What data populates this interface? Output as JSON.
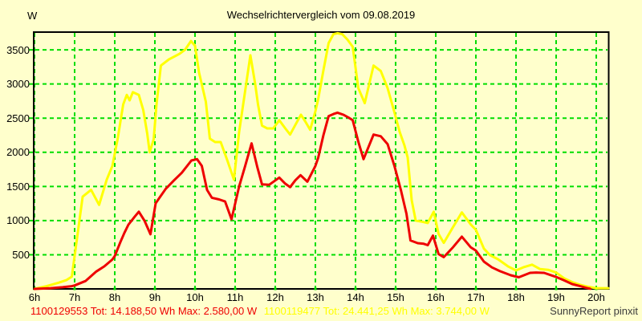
{
  "title": "Wechselrichtervergleich vom 09.08.2019",
  "y_unit": "W",
  "footer": {
    "series_red": "1100129553 Tot: 14.188,50 Wh Max: 2.580,00 W",
    "series_yellow": "1100119477 Tot: 24.441,25 Wh Max: 3.744,00 W",
    "credit": "SunnyReport pinxit"
  },
  "colors": {
    "background": "#ffffcc",
    "grid": "#00dd00",
    "axis": "#000000",
    "text": "#000000",
    "series_red": "#ee0000",
    "series_yellow": "#ffff00"
  },
  "chart_data": {
    "type": "line",
    "title": "Wechselrichtervergleich vom 09.08.2019",
    "xlabel": "",
    "ylabel": "W",
    "x_ticks": [
      "6h",
      "7h",
      "8h",
      "9h",
      "10h",
      "11h",
      "12h",
      "13h",
      "14h",
      "15h",
      "16h",
      "17h",
      "18h",
      "19h",
      "20h"
    ],
    "y_ticks": [
      500,
      1000,
      1500,
      2000,
      2500,
      3000,
      3500
    ],
    "xlim": [
      6,
      20.3
    ],
    "ylim": [
      0,
      3760
    ],
    "grid": true,
    "grid_style": "dashed",
    "legend_position": "bottom",
    "series": [
      {
        "name": "1100129553",
        "color": "#ee0000",
        "total_wh": "14.188,50",
        "max_w": "2.580,00",
        "points": [
          [
            6.0,
            0
          ],
          [
            6.4,
            10
          ],
          [
            6.7,
            25
          ],
          [
            6.93,
            40
          ],
          [
            7.0,
            50
          ],
          [
            7.27,
            115
          ],
          [
            7.54,
            255
          ],
          [
            7.74,
            330
          ],
          [
            7.94,
            430
          ],
          [
            8.0,
            480
          ],
          [
            8.14,
            685
          ],
          [
            8.24,
            820
          ],
          [
            8.34,
            940
          ],
          [
            8.5,
            1060
          ],
          [
            8.6,
            1130
          ],
          [
            8.74,
            1000
          ],
          [
            8.89,
            800
          ],
          [
            9.02,
            1255
          ],
          [
            9.11,
            1330
          ],
          [
            9.27,
            1465
          ],
          [
            9.47,
            1585
          ],
          [
            9.67,
            1700
          ],
          [
            9.91,
            1880
          ],
          [
            10.05,
            1900
          ],
          [
            10.17,
            1800
          ],
          [
            10.3,
            1450
          ],
          [
            10.42,
            1335
          ],
          [
            10.6,
            1310
          ],
          [
            10.75,
            1280
          ],
          [
            10.91,
            1020
          ],
          [
            11.1,
            1500
          ],
          [
            11.25,
            1800
          ],
          [
            11.41,
            2130
          ],
          [
            11.55,
            1790
          ],
          [
            11.67,
            1530
          ],
          [
            11.85,
            1525
          ],
          [
            12.1,
            1630
          ],
          [
            12.25,
            1540
          ],
          [
            12.37,
            1490
          ],
          [
            12.5,
            1590
          ],
          [
            12.63,
            1665
          ],
          [
            12.8,
            1570
          ],
          [
            13.0,
            1800
          ],
          [
            13.07,
            1920
          ],
          [
            13.2,
            2250
          ],
          [
            13.33,
            2530
          ],
          [
            13.45,
            2560
          ],
          [
            13.55,
            2580
          ],
          [
            13.7,
            2550
          ],
          [
            13.85,
            2500
          ],
          [
            13.93,
            2470
          ],
          [
            14.07,
            2155
          ],
          [
            14.2,
            1900
          ],
          [
            14.45,
            2260
          ],
          [
            14.63,
            2235
          ],
          [
            14.8,
            2120
          ],
          [
            14.97,
            1800
          ],
          [
            15.13,
            1450
          ],
          [
            15.27,
            1100
          ],
          [
            15.37,
            710
          ],
          [
            15.55,
            670
          ],
          [
            15.7,
            660
          ],
          [
            15.8,
            640
          ],
          [
            15.93,
            780
          ],
          [
            16.07,
            510
          ],
          [
            16.2,
            465
          ],
          [
            16.43,
            610
          ],
          [
            16.65,
            765
          ],
          [
            16.87,
            610
          ],
          [
            17.0,
            560
          ],
          [
            17.2,
            400
          ],
          [
            17.4,
            315
          ],
          [
            17.6,
            260
          ],
          [
            17.87,
            200
          ],
          [
            18.07,
            170
          ],
          [
            18.35,
            235
          ],
          [
            18.5,
            240
          ],
          [
            18.7,
            235
          ],
          [
            18.9,
            195
          ],
          [
            19.0,
            175
          ],
          [
            19.2,
            125
          ],
          [
            19.4,
            70
          ],
          [
            19.6,
            40
          ],
          [
            19.75,
            15
          ],
          [
            19.85,
            2
          ]
        ]
      },
      {
        "name": "1100119477",
        "color": "#ffff00",
        "total_wh": "24.441,25",
        "max_w": "3.744,00",
        "points": [
          [
            6.0,
            0
          ],
          [
            6.3,
            40
          ],
          [
            6.6,
            90
          ],
          [
            6.8,
            130
          ],
          [
            6.93,
            180
          ],
          [
            7.05,
            700
          ],
          [
            7.2,
            1350
          ],
          [
            7.41,
            1450
          ],
          [
            7.61,
            1230
          ],
          [
            7.8,
            1600
          ],
          [
            7.94,
            1800
          ],
          [
            8.07,
            2190
          ],
          [
            8.21,
            2700
          ],
          [
            8.3,
            2840
          ],
          [
            8.37,
            2760
          ],
          [
            8.45,
            2880
          ],
          [
            8.6,
            2840
          ],
          [
            8.71,
            2620
          ],
          [
            8.81,
            2270
          ],
          [
            8.87,
            2000
          ],
          [
            8.97,
            2190
          ],
          [
            9.04,
            2700
          ],
          [
            9.15,
            3270
          ],
          [
            9.35,
            3360
          ],
          [
            9.61,
            3440
          ],
          [
            9.75,
            3500
          ],
          [
            9.9,
            3630
          ],
          [
            10.0,
            3560
          ],
          [
            10.1,
            3170
          ],
          [
            10.27,
            2740
          ],
          [
            10.37,
            2200
          ],
          [
            10.5,
            2150
          ],
          [
            10.64,
            2150
          ],
          [
            10.8,
            1890
          ],
          [
            10.97,
            1600
          ],
          [
            11.1,
            2300
          ],
          [
            11.25,
            2900
          ],
          [
            11.38,
            3420
          ],
          [
            11.5,
            3000
          ],
          [
            11.57,
            2700
          ],
          [
            11.67,
            2390
          ],
          [
            11.8,
            2350
          ],
          [
            11.95,
            2350
          ],
          [
            12.1,
            2470
          ],
          [
            12.25,
            2350
          ],
          [
            12.37,
            2260
          ],
          [
            12.5,
            2400
          ],
          [
            12.64,
            2550
          ],
          [
            12.75,
            2450
          ],
          [
            12.87,
            2330
          ],
          [
            13.0,
            2600
          ],
          [
            13.07,
            2780
          ],
          [
            13.2,
            3200
          ],
          [
            13.33,
            3600
          ],
          [
            13.45,
            3730
          ],
          [
            13.55,
            3744
          ],
          [
            13.67,
            3730
          ],
          [
            13.8,
            3650
          ],
          [
            13.93,
            3545
          ],
          [
            14.07,
            2940
          ],
          [
            14.23,
            2720
          ],
          [
            14.45,
            3270
          ],
          [
            14.63,
            3190
          ],
          [
            14.8,
            2940
          ],
          [
            14.97,
            2585
          ],
          [
            15.1,
            2300
          ],
          [
            15.22,
            2100
          ],
          [
            15.3,
            1925
          ],
          [
            15.4,
            1300
          ],
          [
            15.5,
            1000
          ],
          [
            15.65,
            985
          ],
          [
            15.8,
            965
          ],
          [
            15.95,
            1130
          ],
          [
            16.07,
            805
          ],
          [
            16.2,
            675
          ],
          [
            16.43,
            905
          ],
          [
            16.65,
            1120
          ],
          [
            16.87,
            945
          ],
          [
            17.0,
            865
          ],
          [
            17.2,
            590
          ],
          [
            17.35,
            495
          ],
          [
            17.55,
            435
          ],
          [
            17.8,
            330
          ],
          [
            18.0,
            270
          ],
          [
            18.2,
            320
          ],
          [
            18.4,
            355
          ],
          [
            18.6,
            290
          ],
          [
            18.8,
            280
          ],
          [
            19.0,
            240
          ],
          [
            19.2,
            155
          ],
          [
            19.4,
            100
          ],
          [
            19.6,
            60
          ],
          [
            19.8,
            30
          ],
          [
            20.0,
            10
          ],
          [
            20.3,
            10
          ]
        ]
      }
    ]
  }
}
